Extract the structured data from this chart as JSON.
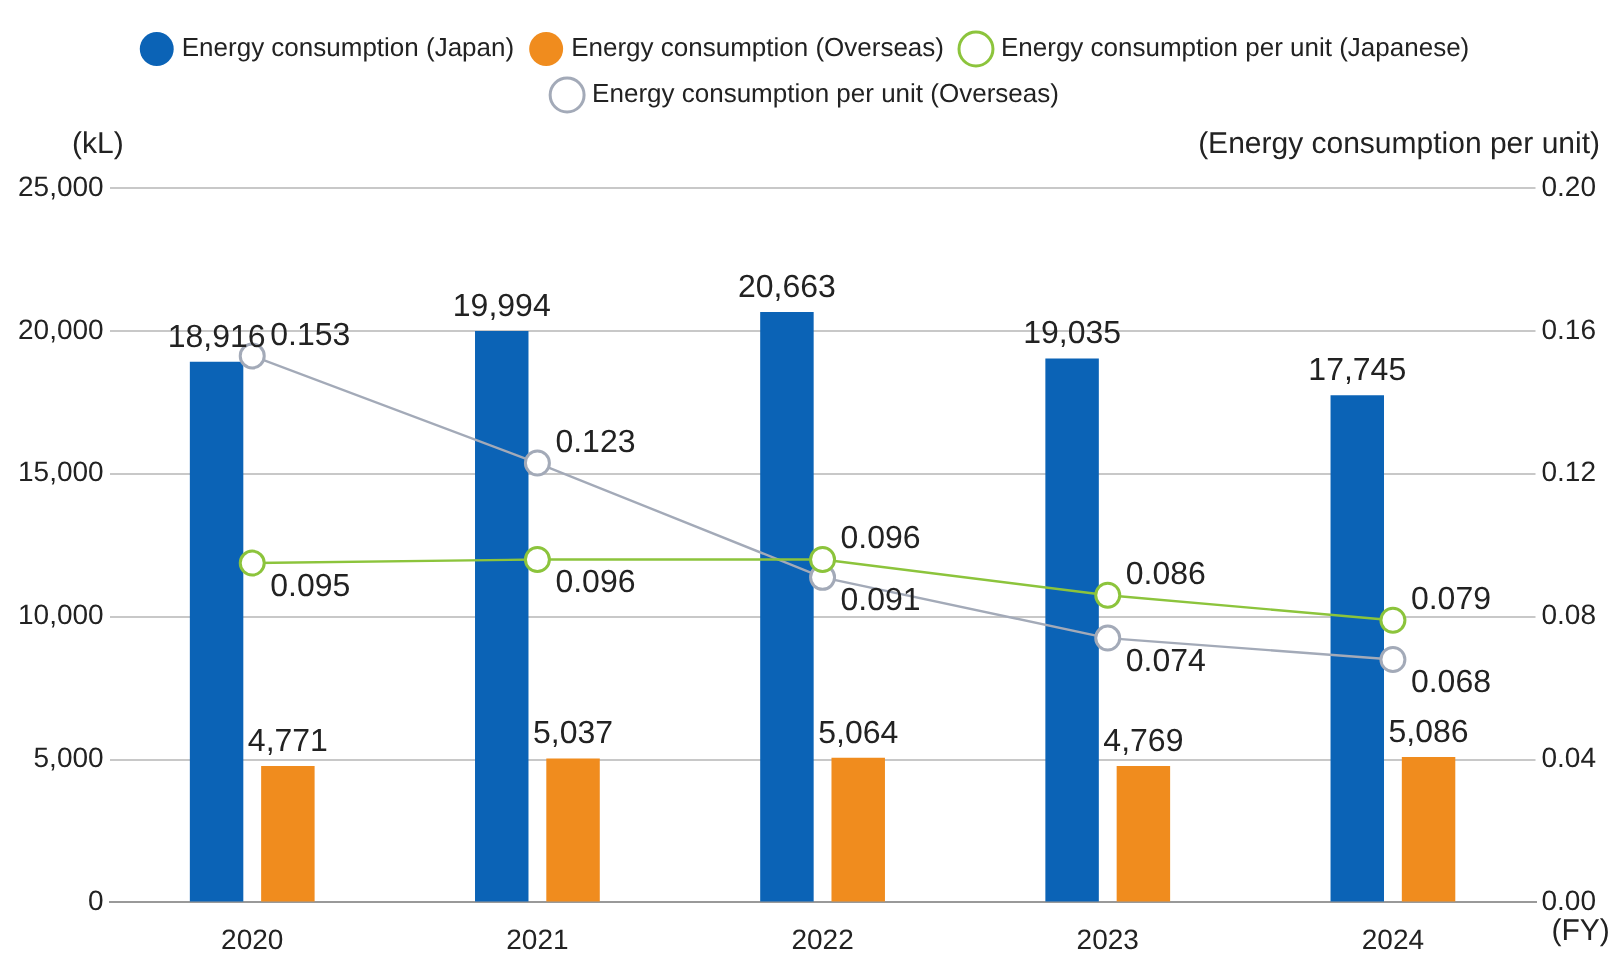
{
  "chart_data": {
    "type": "bar",
    "categories": [
      "2020",
      "2021",
      "2022",
      "2023",
      "2024"
    ],
    "series": [
      {
        "name": "Energy consumption (Japan)",
        "color": "#0b63b6",
        "values": [
          18916,
          19994,
          20663,
          19035,
          17745
        ],
        "value_labels": [
          "18,916",
          "19,994",
          "20,663",
          "19,035",
          "17,745"
        ]
      },
      {
        "name": "Energy consumption (Overseas)",
        "color": "#f08c1e",
        "values": [
          4771,
          5037,
          5064,
          4769,
          5086
        ],
        "value_labels": [
          "4,771",
          "5,037",
          "5,064",
          "4,769",
          "5,086"
        ]
      },
      {
        "name": "Energy consumption per unit (Japanese)",
        "type": "line",
        "axis": "y2",
        "color": "#8cc43c",
        "values": [
          0.095,
          0.096,
          0.096,
          0.086,
          0.079
        ],
        "value_labels": [
          "0.095",
          "0.096",
          "0.096",
          "0.086",
          "0.079"
        ]
      },
      {
        "name": "Energy consumption per unit (Overseas)",
        "type": "line",
        "axis": "y2",
        "color": "#a3aab8",
        "values": [
          0.153,
          0.123,
          0.091,
          0.074,
          0.068
        ],
        "value_labels": [
          "0.153",
          "0.123",
          "0.091",
          "0.074",
          "0.068"
        ]
      }
    ],
    "ylim": [
      0,
      25000
    ],
    "yticks": [
      {
        "value": 0,
        "label": "0"
      },
      {
        "value": 5000,
        "label": "5,000"
      },
      {
        "value": 10000,
        "label": "10,000"
      },
      {
        "value": 15000,
        "label": "15,000"
      },
      {
        "value": 20000,
        "label": "20,000"
      },
      {
        "value": 25000,
        "label": "25,000"
      }
    ],
    "y2lim": [
      0,
      0.2
    ],
    "y2ticks": [
      {
        "value": 0,
        "label": "0.00"
      },
      {
        "value": 0.04,
        "label": "0.04"
      },
      {
        "value": 0.08,
        "label": "0.08"
      },
      {
        "value": 0.12,
        "label": "0.12"
      },
      {
        "value": 0.16,
        "label": "0.16"
      },
      {
        "value": 0.2,
        "label": "0.20"
      }
    ],
    "ylabel": "(kL)",
    "y2label": "(Energy consumption per unit)",
    "xlabel": "(FY)",
    "grid": "y",
    "legend": "top",
    "marker": "circle",
    "line_style": "solid"
  }
}
